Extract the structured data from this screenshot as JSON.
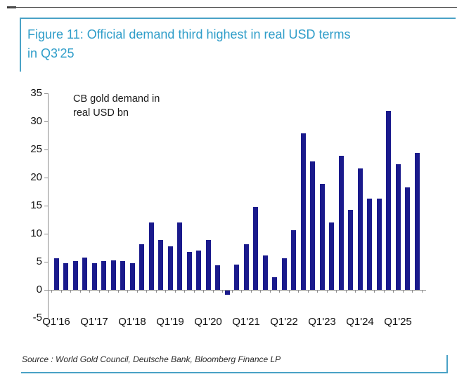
{
  "header": {
    "title_line1": "Figure 11: Official demand third highest in real USD terms",
    "title_line2": "in Q3'25"
  },
  "annotation": {
    "line1": "CB gold demand in",
    "line2": "real USD bn"
  },
  "source": "Source : World Gold Council, Deutsche Bank, Bloomberg Finance LP",
  "colors": {
    "bar": "#1a1a8c",
    "title_blue": "#2e9dc9",
    "frame_blue": "#4aa2c6",
    "axis_gray": "#8c8c8c",
    "text_black": "#111111"
  },
  "chart_data": {
    "type": "bar",
    "title": "CB gold demand in real USD bn",
    "legend": "none",
    "grid": false,
    "ylim": [
      -5,
      35
    ],
    "yticks": [
      35,
      30,
      25,
      20,
      15,
      10,
      5,
      0,
      -5
    ],
    "categories": [
      "Q1'16",
      "Q2'16",
      "Q3'16",
      "Q4'16",
      "Q1'17",
      "Q2'17",
      "Q3'17",
      "Q4'17",
      "Q1'18",
      "Q2'18",
      "Q3'18",
      "Q4'18",
      "Q1'19",
      "Q2'19",
      "Q3'19",
      "Q4'19",
      "Q1'20",
      "Q2'20",
      "Q3'20",
      "Q4'20",
      "Q1'21",
      "Q2'21",
      "Q3'21",
      "Q4'21",
      "Q1'22",
      "Q2'22",
      "Q3'22",
      "Q4'22",
      "Q1'23",
      "Q2'23",
      "Q3'23",
      "Q4'23",
      "Q1'24",
      "Q2'24",
      "Q3'24",
      "Q4'24",
      "Q1'25",
      "Q2'25",
      "Q3'25"
    ],
    "values": [
      5.6,
      4.7,
      5.1,
      5.7,
      4.8,
      5.1,
      5.2,
      5.1,
      4.7,
      8.1,
      12.0,
      8.9,
      7.8,
      12.0,
      6.7,
      7.0,
      8.9,
      4.4,
      -0.7,
      4.5,
      8.1,
      14.8,
      6.1,
      2.3,
      5.6,
      10.6,
      27.9,
      22.9,
      18.9,
      12.0,
      23.9,
      14.3,
      21.6,
      16.3,
      16.3,
      31.9,
      22.4,
      18.2,
      24.4
    ],
    "x_tick_labels": [
      "Q1'16",
      "Q1'17",
      "Q1'18",
      "Q1'19",
      "Q1'20",
      "Q1'21",
      "Q1'22",
      "Q1'23",
      "Q1'24",
      "Q1'25"
    ],
    "x_tick_indices": [
      0,
      4,
      8,
      12,
      16,
      20,
      24,
      28,
      32,
      36
    ]
  }
}
